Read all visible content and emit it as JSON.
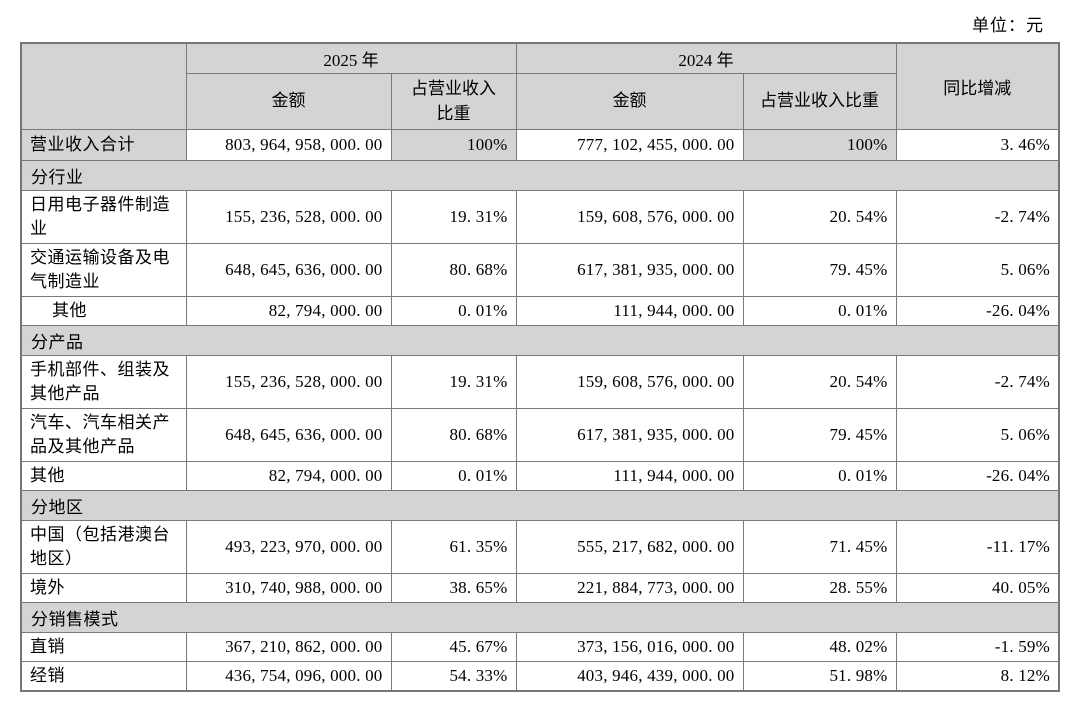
{
  "unit_label": "单位：元",
  "colors": {
    "header_bg": "#d4d4d4",
    "border": "#7a7a7a",
    "text": "#000000",
    "page_bg": "#ffffff"
  },
  "table": {
    "header": {
      "year_2025": "2025 年",
      "year_2024": "2024 年",
      "amount_2025": "金额",
      "pct_2025": "占营业收入\n比重",
      "amount_2024": "金额",
      "pct_2024": "占营业收入比重",
      "yoy": "同比增减"
    },
    "rows": [
      {
        "type": "data",
        "shaded": true,
        "label": "营业收入合计",
        "amount_2025": "803,964,958,000.00",
        "pct_2025": "100%",
        "amount_2024": "777,102,455,000.00",
        "pct_2024": "100%",
        "yoy": "3.46%"
      },
      {
        "type": "section",
        "label": "分行业"
      },
      {
        "type": "data",
        "label": "日用电子器件制造业",
        "amount_2025": "155,236,528,000.00",
        "pct_2025": "19.31%",
        "amount_2024": "159,608,576,000.00",
        "pct_2024": "20.54%",
        "yoy": "-2.74%"
      },
      {
        "type": "data",
        "label": "交通运输设备及电气制造业",
        "amount_2025": "648,645,636,000.00",
        "pct_2025": "80.68%",
        "amount_2024": "617,381,935,000.00",
        "pct_2024": "79.45%",
        "yoy": "5.06%"
      },
      {
        "type": "data",
        "indent": true,
        "label": "其他",
        "amount_2025": "82,794,000.00",
        "pct_2025": "0.01%",
        "amount_2024": "111,944,000.00",
        "pct_2024": "0.01%",
        "yoy": "-26.04%"
      },
      {
        "type": "section",
        "label": "分产品"
      },
      {
        "type": "data",
        "label": "手机部件、组装及其他产品",
        "amount_2025": "155,236,528,000.00",
        "pct_2025": "19.31%",
        "amount_2024": "159,608,576,000.00",
        "pct_2024": "20.54%",
        "yoy": "-2.74%"
      },
      {
        "type": "data",
        "label": "汽车、汽车相关产品及其他产品",
        "amount_2025": "648,645,636,000.00",
        "pct_2025": "80.68%",
        "amount_2024": "617,381,935,000.00",
        "pct_2024": "79.45%",
        "yoy": "5.06%"
      },
      {
        "type": "data",
        "label": "其他",
        "amount_2025": "82,794,000.00",
        "pct_2025": "0.01%",
        "amount_2024": "111,944,000.00",
        "pct_2024": "0.01%",
        "yoy": "-26.04%"
      },
      {
        "type": "section",
        "label": "分地区"
      },
      {
        "type": "data",
        "label": "中国（包括港澳台地区）",
        "amount_2025": "493,223,970,000.00",
        "pct_2025": "61.35%",
        "amount_2024": "555,217,682,000.00",
        "pct_2024": "71.45%",
        "yoy": "-11.17%"
      },
      {
        "type": "data",
        "label": "境外",
        "amount_2025": "310,740,988,000.00",
        "pct_2025": "38.65%",
        "amount_2024": "221,884,773,000.00",
        "pct_2024": "28.55%",
        "yoy": "40.05%"
      },
      {
        "type": "section",
        "label": "分销售模式"
      },
      {
        "type": "data",
        "label": "直销",
        "amount_2025": "367,210,862,000.00",
        "pct_2025": "45.67%",
        "amount_2024": "373,156,016,000.00",
        "pct_2024": "48.02%",
        "yoy": "-1.59%"
      },
      {
        "type": "data",
        "label": "经销",
        "amount_2025": "436,754,096,000.00",
        "pct_2025": "54.33%",
        "amount_2024": "403,946,439,000.00",
        "pct_2024": "51.98%",
        "yoy": "8.12%"
      }
    ]
  }
}
